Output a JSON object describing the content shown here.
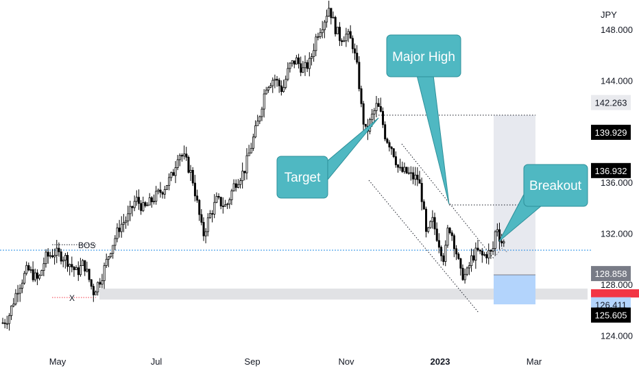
{
  "chart_data": {
    "type": "candlestick",
    "currency_label": "JPY",
    "x_tick_labels": [
      "May",
      "Jul",
      "Sep",
      "Nov",
      "2023",
      "Mar"
    ],
    "y_tick_labels": [
      "148.000",
      "144.000",
      "136.000",
      "132.000",
      "128.000",
      "124.000"
    ],
    "y_ticks": [
      148,
      144,
      136,
      132,
      128,
      124
    ],
    "ylim": [
      122.9,
      150.3
    ],
    "price_path": [
      [
        0,
        124.8
      ],
      [
        12,
        125.4
      ],
      [
        25,
        127.6
      ],
      [
        40,
        129.2
      ],
      [
        56,
        128.3
      ],
      [
        66,
        130.1
      ],
      [
        80,
        130.5
      ],
      [
        95,
        130.1
      ],
      [
        112,
        128.9
      ],
      [
        122,
        129.7
      ],
      [
        136,
        127.4
      ],
      [
        148,
        128.6
      ],
      [
        162,
        130.9
      ],
      [
        175,
        132.6
      ],
      [
        186,
        133.2
      ],
      [
        198,
        134.7
      ],
      [
        210,
        133.9
      ],
      [
        225,
        134.8
      ],
      [
        238,
        135.5
      ],
      [
        252,
        136.6
      ],
      [
        260,
        138.4
      ],
      [
        270,
        137.8
      ],
      [
        280,
        136.5
      ],
      [
        288,
        134.2
      ],
      [
        296,
        131.8
      ],
      [
        305,
        133.3
      ],
      [
        316,
        134.6
      ],
      [
        330,
        134.1
      ],
      [
        342,
        135.9
      ],
      [
        356,
        136.9
      ],
      [
        366,
        138.8
      ],
      [
        376,
        140.7
      ],
      [
        388,
        143.6
      ],
      [
        400,
        144.2
      ],
      [
        412,
        143.2
      ],
      [
        422,
        145.1
      ],
      [
        432,
        145.6
      ],
      [
        442,
        144.8
      ],
      [
        452,
        145.4
      ],
      [
        462,
        147.6
      ],
      [
        472,
        148.6
      ],
      [
        480,
        149.8
      ],
      [
        488,
        148.2
      ],
      [
        496,
        147.3
      ],
      [
        506,
        147.6
      ],
      [
        514,
        146.9
      ],
      [
        522,
        144.6
      ],
      [
        528,
        141.3
      ],
      [
        534,
        139.8
      ],
      [
        542,
        141.1
      ],
      [
        550,
        142.1
      ],
      [
        556,
        141.2
      ],
      [
        562,
        139.6
      ],
      [
        572,
        138.7
      ],
      [
        582,
        136.9
      ],
      [
        592,
        136.8
      ],
      [
        602,
        136.4
      ],
      [
        610,
        136.3
      ],
      [
        616,
        134.6
      ],
      [
        622,
        131.6
      ],
      [
        630,
        133.1
      ],
      [
        640,
        131.3
      ],
      [
        648,
        129.9
      ],
      [
        654,
        132.7
      ],
      [
        660,
        131.8
      ],
      [
        666,
        130.4
      ],
      [
        672,
        128.8
      ],
      [
        680,
        128.7
      ],
      [
        688,
        130.1
      ],
      [
        696,
        130.6
      ],
      [
        704,
        130.2
      ],
      [
        712,
        130.5
      ],
      [
        718,
        130.4
      ],
      [
        724,
        132.8
      ],
      [
        730,
        131.4
      ],
      [
        736,
        131.2
      ]
    ],
    "annotations": {
      "target_label": "Target",
      "major_high_label": "Major High",
      "breakout_label": "Breakout",
      "bos_label": "BOS",
      "x_label": "X"
    },
    "price_badges": [
      {
        "value": "142.263",
        "bg": "#e9eaee",
        "fg": "#131722"
      },
      {
        "value": "139.929",
        "bg": "#000000",
        "fg": "#ffffff"
      },
      {
        "value": "136.932",
        "bg": "#000000",
        "fg": "#ffffff"
      },
      {
        "value": "128.858",
        "bg": "#787b86",
        "fg": "#ffffff"
      },
      {
        "value": "126.411",
        "bg": "#b3d4fc",
        "fg": "#131722"
      },
      {
        "value": "125.605",
        "bg": "#000000",
        "fg": "#ffffff"
      }
    ],
    "colors": {
      "candle": "#000000",
      "callout": "#4fb8c2",
      "callout_border": "#2d8f99",
      "profit_zone": "#e3e5ec",
      "stop_zone": "#b3d4fc",
      "red_badge": "#f23645",
      "bos_line": "#1e88e5"
    }
  }
}
